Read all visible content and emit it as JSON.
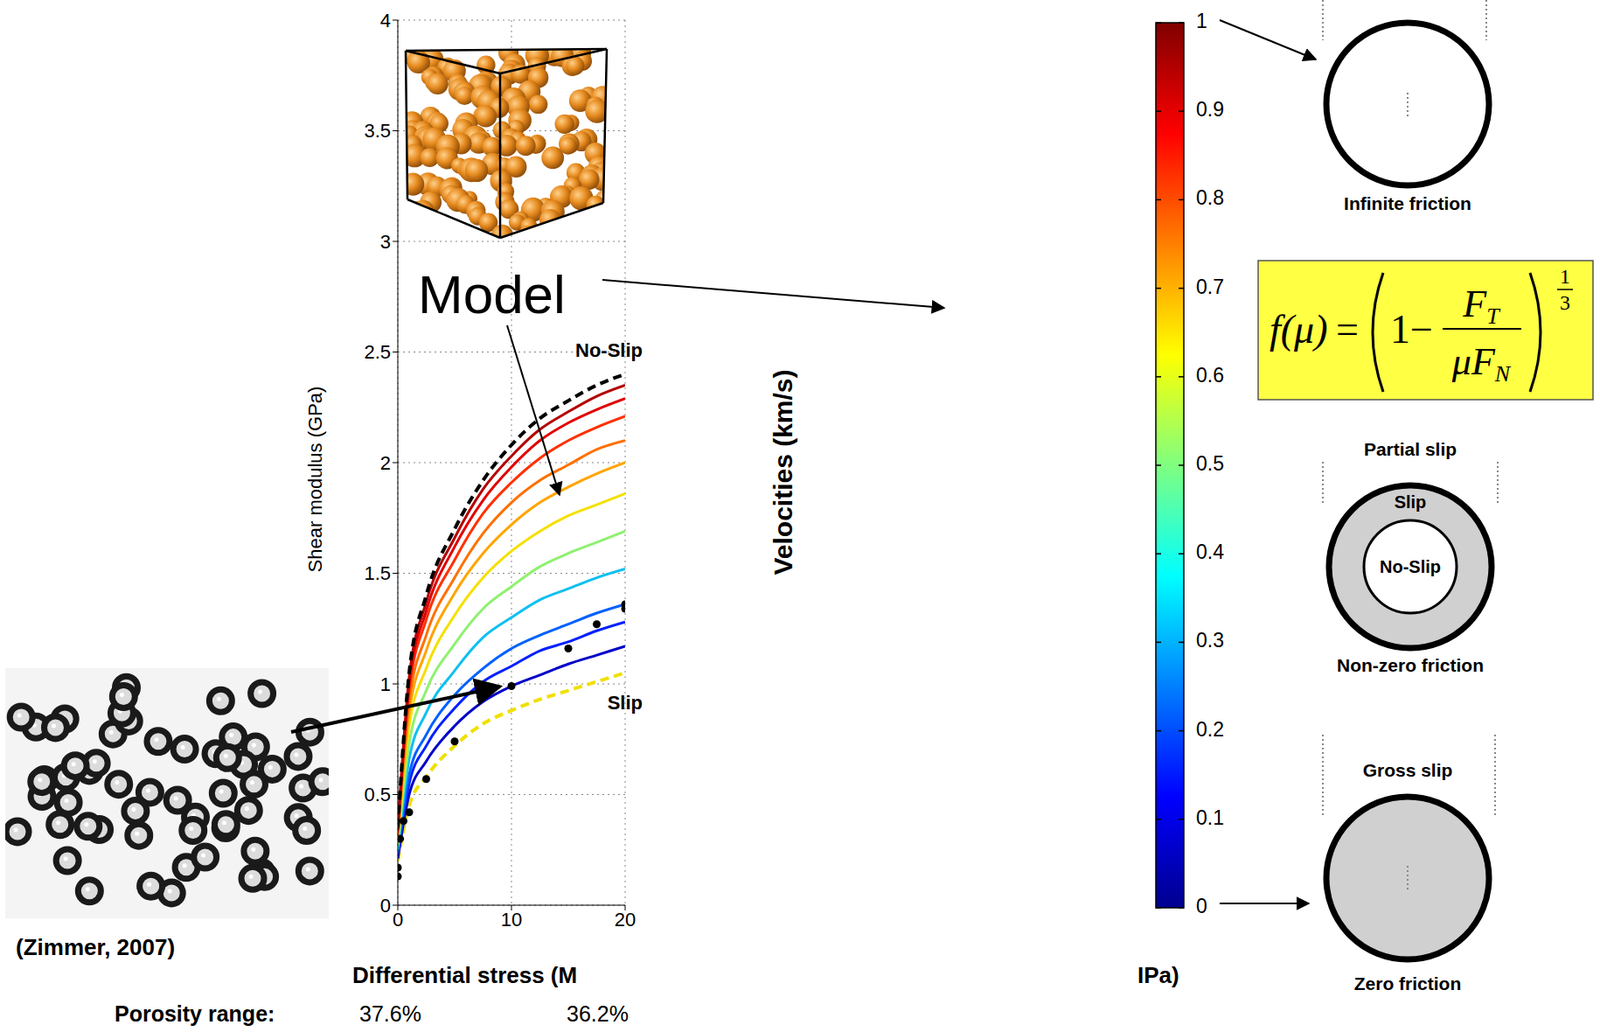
{
  "chart_data": {
    "type": "line",
    "xlabel": "Differential stress (M",
    "ylabel": "Shear modulus (GPa)",
    "xlim": [
      0,
      20
    ],
    "xticks": [
      0,
      10,
      20
    ],
    "ylim": [
      0,
      4
    ],
    "yticks": [
      0,
      0.5,
      1,
      1.5,
      2,
      2.5,
      3,
      3.5,
      4
    ],
    "grid": true,
    "x": [
      0,
      1,
      2.5,
      5,
      7.5,
      10,
      12.5,
      15,
      17.5,
      20
    ],
    "series": [
      {
        "name": "Slip",
        "color": "#f0e000",
        "line_style": "dashed",
        "values": [
          0.2,
          0.45,
          0.58,
          0.72,
          0.82,
          0.88,
          0.93,
          0.97,
          1.01,
          1.05
        ]
      },
      {
        "color": "#0000c8",
        "values": [
          0.21,
          0.5,
          0.65,
          0.81,
          0.92,
          0.99,
          1.04,
          1.09,
          1.13,
          1.17
        ]
      },
      {
        "color": "#0020ff",
        "values": [
          0.23,
          0.55,
          0.72,
          0.89,
          1.01,
          1.08,
          1.15,
          1.19,
          1.24,
          1.28
        ]
      },
      {
        "color": "#0060ff",
        "values": [
          0.24,
          0.59,
          0.77,
          0.95,
          1.07,
          1.16,
          1.22,
          1.27,
          1.32,
          1.36
        ]
      },
      {
        "color": "#10c0f0",
        "values": [
          0.25,
          0.66,
          0.87,
          1.06,
          1.21,
          1.3,
          1.38,
          1.43,
          1.48,
          1.52
        ]
      },
      {
        "color": "#90f070",
        "values": [
          0.27,
          0.73,
          0.97,
          1.18,
          1.34,
          1.44,
          1.53,
          1.59,
          1.64,
          1.69
        ]
      },
      {
        "color": "#f5e000",
        "values": [
          0.29,
          0.81,
          1.07,
          1.31,
          1.48,
          1.6,
          1.69,
          1.76,
          1.81,
          1.86
        ]
      },
      {
        "color": "#ffa500",
        "values": [
          0.31,
          0.87,
          1.15,
          1.41,
          1.59,
          1.72,
          1.82,
          1.89,
          1.95,
          2.0
        ]
      },
      {
        "color": "#ff7000",
        "values": [
          0.32,
          0.92,
          1.22,
          1.48,
          1.68,
          1.82,
          1.92,
          1.99,
          2.06,
          2.1
        ]
      },
      {
        "color": "#ff3000",
        "values": [
          0.33,
          0.97,
          1.29,
          1.56,
          1.77,
          1.91,
          2.02,
          2.1,
          2.16,
          2.21
        ]
      },
      {
        "color": "#e00000",
        "values": [
          0.34,
          1,
          1.33,
          1.62,
          1.83,
          1.98,
          2.1,
          2.18,
          2.24,
          2.29
        ]
      },
      {
        "color": "#b40000",
        "values": [
          0.34,
          1.03,
          1.37,
          1.66,
          1.88,
          2.03,
          2.15,
          2.23,
          2.3,
          2.35
        ]
      },
      {
        "name": "No-Slip",
        "color": "#000000",
        "line_style": "dashed",
        "values": [
          0.35,
          1.05,
          1.4,
          1.7,
          1.92,
          2.08,
          2.2,
          2.28,
          2.35,
          2.4
        ]
      },
      {
        "name": "(Zimmer, 2007)",
        "type": "scatter",
        "marker": "circle",
        "color": "#000000",
        "x": [
          0,
          0,
          0.2,
          0.5,
          1,
          2.5,
          5,
          10,
          15,
          17.5,
          20,
          20
        ],
        "values": [
          0.13,
          0.17,
          0.3,
          0.38,
          0.42,
          0.57,
          0.74,
          0.99,
          1.16,
          1.27,
          1.34,
          1.36
        ]
      }
    ]
  },
  "model_label": "Model",
  "colorbar": {
    "label": "Velocities (km/s)",
    "lim": [
      0,
      1
    ],
    "ticks": [
      0,
      0.1,
      0.2,
      0.3,
      0.4,
      0.5,
      0.6,
      0.7,
      0.8,
      0.9,
      1
    ]
  },
  "axis_fragment": "IPa)",
  "porosity": {
    "label": "Porosity range:",
    "values": [
      "37.6%",
      "36.2%"
    ]
  },
  "formula": {
    "lhs": "f(μ)",
    "equals": "=",
    "one": "1",
    "minus": "−",
    "numerator": "F",
    "numerator_sub": "T",
    "denominator": "μF",
    "denominator_sub": "N",
    "exponent_numerator": "1",
    "exponent_denominator": "3"
  },
  "contact_models": [
    {
      "caption": "Infinite friction"
    },
    {
      "title": "Partial slip",
      "outer_label": "Slip",
      "inner_label": "No-Slip",
      "caption": "Non-zero friction"
    },
    {
      "title": "Gross slip",
      "caption": "Zero friction"
    }
  ]
}
